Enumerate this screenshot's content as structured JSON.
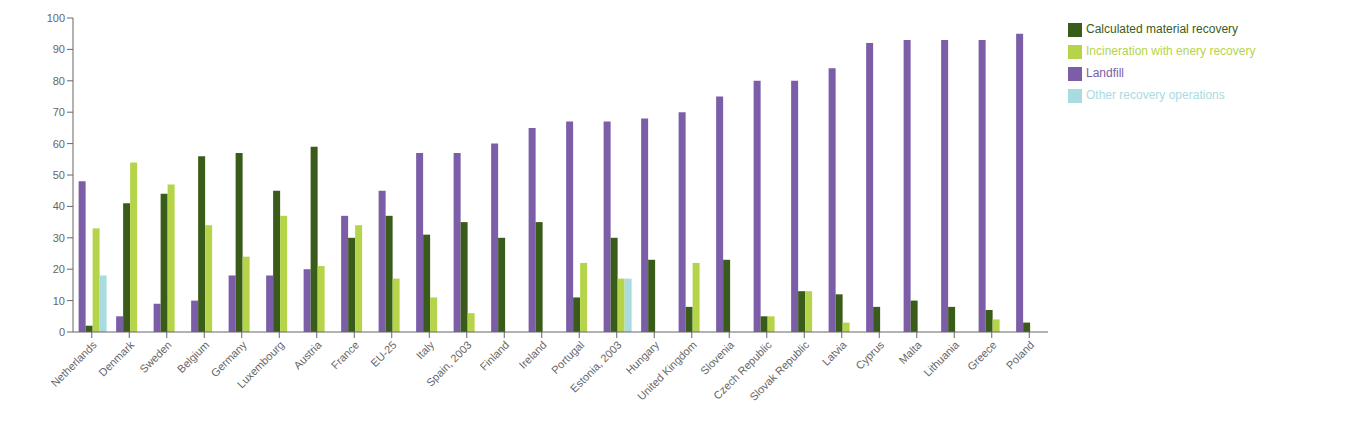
{
  "chart_data": {
    "type": "bar",
    "categories": [
      "Netherlands",
      "Denmark",
      "Sweden",
      "Belgium",
      "Germany",
      "Luxembourg",
      "Austria",
      "France",
      "EU-25",
      "Italy",
      "Spain, 2003",
      "Finland",
      "Ireland",
      "Portugal",
      "Estonia, 2003",
      "Hungary",
      "United Kingdom",
      "Slovenia",
      "Czech Republic",
      "Slovak Republic",
      "Latvia",
      "Cyprus",
      "Malta",
      "Lithuania",
      "Greece",
      "Poland"
    ],
    "series": [
      {
        "name": "Landfill",
        "color": "#7b5ea7",
        "values": [
          48,
          5,
          9,
          10,
          18,
          18,
          20,
          37,
          45,
          57,
          57,
          60,
          65,
          67,
          67,
          68,
          70,
          75,
          80,
          80,
          84,
          92,
          93,
          93,
          93,
          95
        ]
      },
      {
        "name": "Calculated material recovery",
        "color": "#3a5c1a",
        "values": [
          2,
          41,
          44,
          56,
          57,
          45,
          59,
          30,
          37,
          31,
          35,
          30,
          35,
          11,
          30,
          23,
          8,
          23,
          5,
          13,
          12,
          8,
          10,
          8,
          7,
          3
        ]
      },
      {
        "name": "Incineration with enery recovery",
        "color": "#b5d44a",
        "values": [
          33,
          54,
          47,
          34,
          24,
          37,
          21,
          34,
          17,
          11,
          6,
          0,
          0,
          22,
          17,
          0,
          22,
          0,
          5,
          13,
          3,
          0,
          0,
          0,
          4,
          0
        ]
      },
      {
        "name": "Other recovery operations",
        "color": "#a8dce0",
        "values": [
          18,
          0,
          0,
          0,
          0,
          0,
          0,
          0,
          0,
          0,
          0,
          0,
          0,
          0,
          17,
          0,
          0,
          0,
          0,
          0,
          0,
          0,
          0,
          0,
          0,
          0
        ]
      }
    ],
    "ylim": [
      0,
      100
    ],
    "yticks": [
      0,
      10,
      20,
      30,
      40,
      50,
      60,
      70,
      80,
      90,
      100
    ],
    "grid": false,
    "legend": "right"
  }
}
